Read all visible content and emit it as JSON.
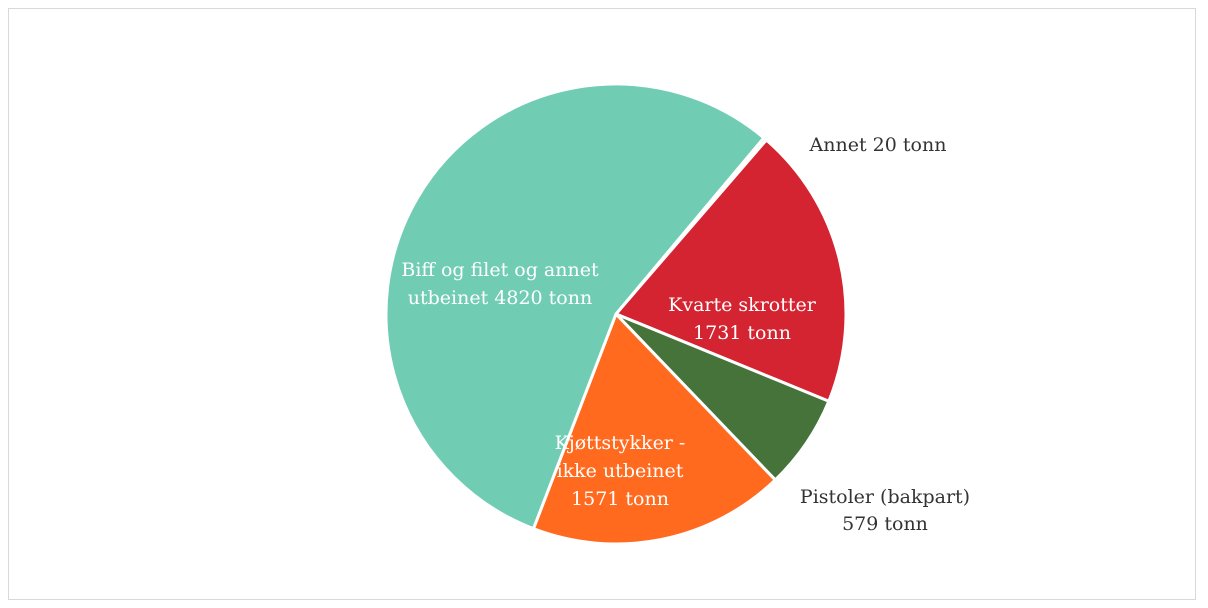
{
  "chart_data": {
    "type": "pie",
    "title": "",
    "unit": "tonn",
    "slices": [
      {
        "name": "Annet",
        "value": 20,
        "color": "#70cdb4",
        "label_lines": [
          "Annet  20 tonn"
        ],
        "label_color": "#333333"
      },
      {
        "name": "Kvarte skrotter",
        "value": 1731,
        "color": "#d42331",
        "label_lines": [
          "Kvarte skrotter",
          "1731 tonn"
        ],
        "label_color": "#ffffff"
      },
      {
        "name": "Pistoler (bakpart)",
        "value": 579,
        "color": "#46733a",
        "label_lines": [
          "Pistoler (bakpart)",
          "579 tonn"
        ],
        "label_color": "#333333"
      },
      {
        "name": "Kjøttstykker - ikke utbeinet",
        "value": 1571,
        "color": "#ff6a1f",
        "label_lines": [
          "Kjøttstykker -",
          "ikke utbeinet",
          "1571 tonn"
        ],
        "label_color": "#ffffff"
      },
      {
        "name": "Biff og filet og annet utbeinet",
        "value": 4820,
        "color": "#70cdb4",
        "label_lines": [
          "Biff og filet og annet",
          "utbeinet 4820 tonn"
        ],
        "label_color": "#ffffff"
      }
    ]
  }
}
